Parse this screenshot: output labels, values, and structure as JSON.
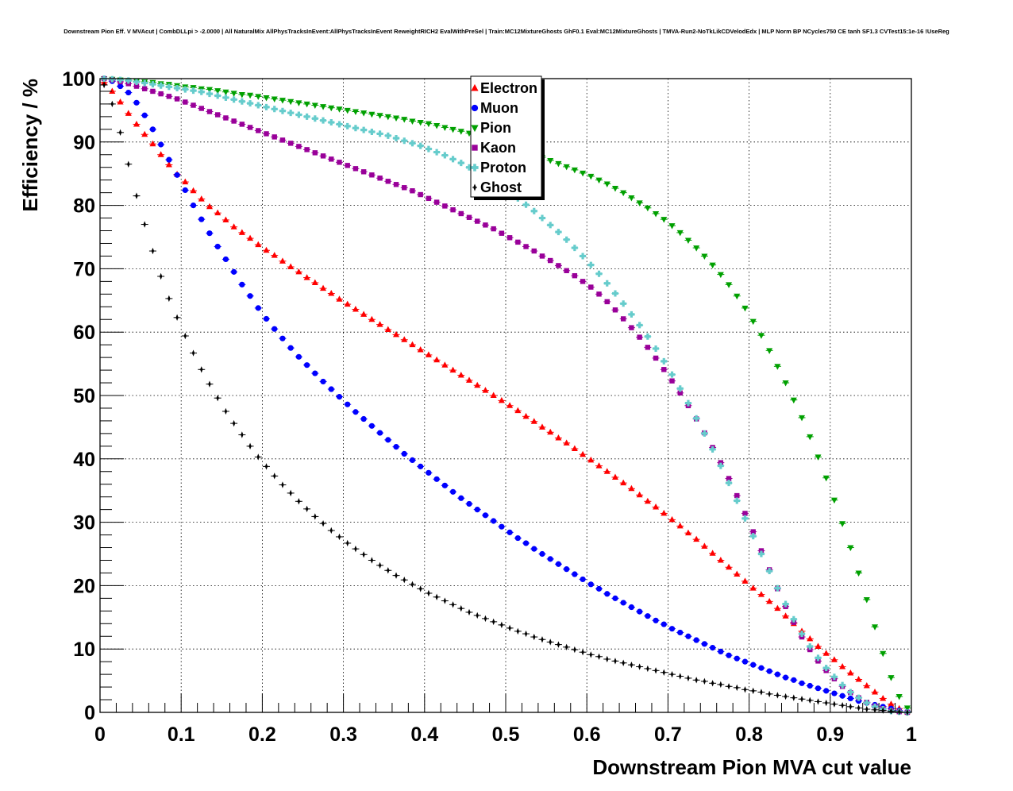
{
  "chart_data": {
    "type": "scatter",
    "title": "Downstream Pion Eff. V MVAcut | CombDLLpi > -2.0000 | All NaturalMix AllPhysTracksInEvent:AllPhysTracksInEvent ReweightRICH2 EvalWithPreSel | Train:MC12MixtureGhosts GhF0.1 Eval:MC12MixtureGhosts | TMVA-Run2-NoTkLikCDVelodEdx | MLP Norm BP NCycles750 CE tanh SF1.3 CVTest15:1e-16 !UseReg",
    "xlabel": "Downstream Pion MVA cut value",
    "ylabel": "Efficiency / %",
    "xlim": [
      0,
      1
    ],
    "ylim": [
      0,
      100
    ],
    "xticks": [
      "0",
      "0.1",
      "0.2",
      "0.3",
      "0.4",
      "0.5",
      "0.6",
      "0.7",
      "0.8",
      "0.9",
      "1"
    ],
    "yticks": [
      "0",
      "10",
      "20",
      "30",
      "40",
      "50",
      "60",
      "70",
      "80",
      "90",
      "100"
    ],
    "grid": true,
    "legend_position": "top-center",
    "x": [
      0.005,
      0.015,
      0.025,
      0.035,
      0.045,
      0.055,
      0.065,
      0.075,
      0.085,
      0.095,
      0.105,
      0.115,
      0.125,
      0.135,
      0.145,
      0.155,
      0.165,
      0.175,
      0.185,
      0.195,
      0.205,
      0.215,
      0.225,
      0.235,
      0.245,
      0.255,
      0.265,
      0.275,
      0.285,
      0.295,
      0.305,
      0.315,
      0.325,
      0.335,
      0.345,
      0.355,
      0.365,
      0.375,
      0.385,
      0.395,
      0.405,
      0.415,
      0.425,
      0.435,
      0.445,
      0.455,
      0.465,
      0.475,
      0.485,
      0.495,
      0.505,
      0.515,
      0.525,
      0.535,
      0.545,
      0.555,
      0.565,
      0.575,
      0.585,
      0.595,
      0.605,
      0.615,
      0.625,
      0.635,
      0.645,
      0.655,
      0.665,
      0.675,
      0.685,
      0.695,
      0.705,
      0.715,
      0.725,
      0.735,
      0.745,
      0.755,
      0.765,
      0.775,
      0.785,
      0.795,
      0.805,
      0.815,
      0.825,
      0.835,
      0.845,
      0.855,
      0.865,
      0.875,
      0.885,
      0.895,
      0.905,
      0.915,
      0.925,
      0.935,
      0.945,
      0.955,
      0.965,
      0.975,
      0.985,
      0.995
    ],
    "series": [
      {
        "name": "Electron",
        "marker": "triangle-up",
        "color": "#ff0000",
        "values": [
          99.4,
          98.0,
          96.3,
          94.5,
          92.8,
          91.2,
          89.7,
          88.0,
          86.4,
          84.9,
          83.7,
          82.3,
          81.0,
          79.8,
          78.8,
          77.7,
          76.6,
          75.7,
          74.8,
          73.8,
          72.9,
          72.1,
          71.2,
          70.3,
          69.5,
          68.6,
          67.8,
          66.9,
          66.1,
          65.2,
          64.4,
          63.6,
          62.8,
          62.0,
          61.2,
          60.4,
          59.6,
          58.8,
          58.0,
          57.2,
          56.4,
          55.6,
          54.8,
          54.0,
          53.2,
          52.4,
          51.6,
          50.8,
          50.0,
          49.2,
          48.4,
          47.6,
          46.7,
          45.9,
          45.0,
          44.2,
          43.3,
          42.5,
          41.6,
          40.7,
          39.8,
          38.9,
          38.0,
          37.1,
          36.2,
          35.3,
          34.3,
          33.3,
          32.4,
          31.4,
          30.4,
          29.4,
          28.3,
          27.3,
          26.2,
          25.1,
          24.0,
          22.9,
          21.8,
          20.7,
          19.6,
          18.6,
          17.5,
          16.4,
          15.2,
          14.0,
          12.8,
          11.6,
          10.4,
          9.3,
          8.3,
          7.2,
          6.2,
          5.2,
          4.2,
          3.2,
          2.2,
          1.3,
          0.6,
          0.1
        ]
      },
      {
        "name": "Muon",
        "marker": "circle",
        "color": "#0000ff",
        "values": [
          100.0,
          99.6,
          98.8,
          97.8,
          96.2,
          94.2,
          92.0,
          89.6,
          87.2,
          84.8,
          82.4,
          80.0,
          77.8,
          75.6,
          73.5,
          71.5,
          69.5,
          67.5,
          65.7,
          63.8,
          62.1,
          60.5,
          59.0,
          57.5,
          56.1,
          54.8,
          53.5,
          52.2,
          51.0,
          49.8,
          48.6,
          47.4,
          46.3,
          45.2,
          44.1,
          43.0,
          41.9,
          40.8,
          39.8,
          38.8,
          37.8,
          36.8,
          35.8,
          34.8,
          33.8,
          32.9,
          32.0,
          31.1,
          30.2,
          29.3,
          28.4,
          27.5,
          26.7,
          25.8,
          25.0,
          24.2,
          23.4,
          22.6,
          21.8,
          21.0,
          20.2,
          19.5,
          18.7,
          18.0,
          17.3,
          16.6,
          15.9,
          15.2,
          14.5,
          13.9,
          13.2,
          12.6,
          12.0,
          11.4,
          10.8,
          10.2,
          9.6,
          9.0,
          8.5,
          8.0,
          7.5,
          7.0,
          6.5,
          6.0,
          5.5,
          5.1,
          4.6,
          4.2,
          3.8,
          3.4,
          3.0,
          2.6,
          2.2,
          1.8,
          1.5,
          1.2,
          0.9,
          0.6,
          0.3,
          0.1
        ]
      },
      {
        "name": "Pion",
        "marker": "triangle-down",
        "color": "#00a000",
        "values": [
          100.0,
          99.9,
          99.8,
          99.7,
          99.6,
          99.5,
          99.4,
          99.2,
          99.1,
          98.9,
          98.7,
          98.6,
          98.4,
          98.3,
          98.1,
          97.9,
          97.7,
          97.5,
          97.4,
          97.2,
          97.0,
          96.8,
          96.6,
          96.4,
          96.2,
          96.0,
          95.8,
          95.6,
          95.4,
          95.2,
          95.0,
          94.8,
          94.6,
          94.4,
          94.2,
          94.0,
          93.8,
          93.6,
          93.3,
          93.1,
          92.9,
          92.6,
          92.3,
          92.0,
          91.7,
          91.4,
          91.0,
          90.7,
          90.3,
          89.9,
          89.5,
          89.1,
          88.6,
          88.1,
          87.6,
          87.1,
          86.6,
          86.1,
          85.6,
          85.1,
          84.6,
          84.0,
          83.4,
          82.7,
          82.0,
          81.2,
          80.4,
          79.6,
          78.7,
          77.8,
          76.8,
          75.7,
          74.5,
          73.3,
          72.0,
          70.6,
          69.1,
          67.5,
          65.7,
          63.8,
          61.7,
          59.5,
          57.1,
          54.6,
          52.0,
          49.3,
          46.5,
          43.5,
          40.3,
          37.0,
          33.5,
          29.8,
          26.0,
          22.0,
          17.8,
          13.5,
          9.3,
          5.5,
          2.5,
          0.7
        ]
      },
      {
        "name": "Kaon",
        "marker": "square",
        "color": "#990099",
        "values": [
          100.0,
          99.8,
          99.5,
          99.2,
          98.8,
          98.4,
          98.0,
          97.6,
          97.2,
          96.8,
          96.3,
          95.8,
          95.3,
          94.8,
          94.3,
          93.8,
          93.3,
          92.8,
          92.3,
          91.8,
          91.3,
          90.8,
          90.3,
          89.8,
          89.3,
          88.8,
          88.3,
          87.8,
          87.3,
          86.8,
          86.3,
          85.8,
          85.3,
          84.8,
          84.3,
          83.8,
          83.3,
          82.8,
          82.3,
          81.7,
          81.1,
          80.5,
          79.9,
          79.3,
          78.7,
          78.1,
          77.5,
          76.9,
          76.3,
          75.6,
          74.9,
          74.2,
          73.5,
          72.8,
          72.0,
          71.3,
          70.5,
          69.7,
          68.9,
          68.0,
          67.1,
          66.0,
          64.8,
          63.5,
          62.1,
          60.7,
          59.2,
          57.6,
          55.9,
          54.1,
          52.3,
          50.4,
          48.4,
          46.3,
          44.1,
          41.8,
          39.4,
          36.9,
          34.2,
          31.4,
          28.5,
          25.5,
          22.5,
          19.5,
          16.7,
          14.2,
          11.9,
          9.9,
          8.1,
          6.6,
          5.3,
          4.1,
          3.1,
          2.3,
          1.6,
          1.0,
          0.6,
          0.3,
          0.1,
          0.0
        ]
      },
      {
        "name": "Proton",
        "marker": "cross",
        "color": "#66cccc",
        "values": [
          100.0,
          99.9,
          99.8,
          99.7,
          99.5,
          99.3,
          99.1,
          98.9,
          98.7,
          98.5,
          98.3,
          98.1,
          97.9,
          97.6,
          97.3,
          97.0,
          96.7,
          96.4,
          96.1,
          95.8,
          95.5,
          95.2,
          94.9,
          94.6,
          94.3,
          94.0,
          93.7,
          93.4,
          93.1,
          92.8,
          92.5,
          92.2,
          91.9,
          91.6,
          91.3,
          91.0,
          90.6,
          90.2,
          89.8,
          89.4,
          88.9,
          88.4,
          87.9,
          87.3,
          86.7,
          86.0,
          85.3,
          84.5,
          83.7,
          82.9,
          82.0,
          81.1,
          80.1,
          79.1,
          78.0,
          76.9,
          75.8,
          74.6,
          73.3,
          72.0,
          70.6,
          69.2,
          67.7,
          66.1,
          64.5,
          62.8,
          61.1,
          59.3,
          57.4,
          55.4,
          53.3,
          51.1,
          48.8,
          46.4,
          44.0,
          41.5,
          38.9,
          36.2,
          33.4,
          30.6,
          27.8,
          25.0,
          22.3,
          19.6,
          17.1,
          14.7,
          12.4,
          10.4,
          8.6,
          7.0,
          5.6,
          4.3,
          3.2,
          2.3,
          1.5,
          0.9,
          0.5,
          0.2,
          0.1,
          0.0
        ]
      },
      {
        "name": "Ghost",
        "marker": "star",
        "color": "#000000",
        "values": [
          99.0,
          96.0,
          91.5,
          86.5,
          81.5,
          77.0,
          72.8,
          68.8,
          65.3,
          62.3,
          59.4,
          56.7,
          54.1,
          51.8,
          49.6,
          47.5,
          45.6,
          43.8,
          42.0,
          40.3,
          38.8,
          37.3,
          35.9,
          34.6,
          33.3,
          32.1,
          30.9,
          29.8,
          28.7,
          27.7,
          26.7,
          25.8,
          24.9,
          24.0,
          23.2,
          22.4,
          21.6,
          20.9,
          20.2,
          19.5,
          18.8,
          18.2,
          17.6,
          17.0,
          16.4,
          15.8,
          15.3,
          14.8,
          14.3,
          13.8,
          13.3,
          12.8,
          12.4,
          11.9,
          11.5,
          11.1,
          10.7,
          10.3,
          9.9,
          9.5,
          9.1,
          8.8,
          8.4,
          8.1,
          7.8,
          7.5,
          7.2,
          6.9,
          6.6,
          6.3,
          6.0,
          5.7,
          5.4,
          5.1,
          4.9,
          4.6,
          4.4,
          4.1,
          3.9,
          3.6,
          3.4,
          3.2,
          2.9,
          2.7,
          2.5,
          2.3,
          2.1,
          1.9,
          1.7,
          1.5,
          1.3,
          1.1,
          0.9,
          0.7,
          0.5,
          0.4,
          0.3,
          0.2,
          0.1,
          0.0
        ]
      }
    ]
  }
}
